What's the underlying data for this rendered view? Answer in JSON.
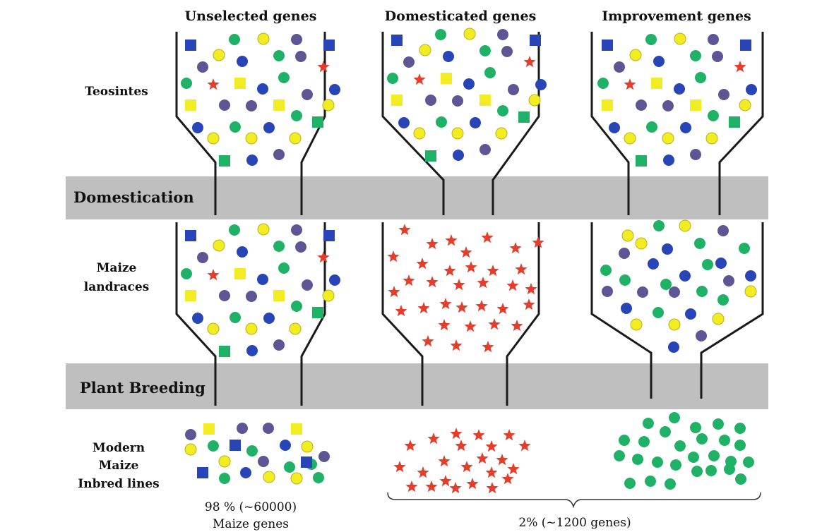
{
  "columns": [
    {
      "title": "Unselected genes"
    },
    {
      "title": "Domesticated genes"
    },
    {
      "title": "Improvement genes"
    }
  ],
  "rows": {
    "teosintes": "Teosintes",
    "landraces_line1": "Maize",
    "landraces_line2": "landraces",
    "inbred_line1": "Modern",
    "inbred_line2": "Maize",
    "inbred_line3": "Inbred lines"
  },
  "bands": {
    "domestication": "Domestication",
    "breeding": "Plant Breeding"
  },
  "captions": {
    "unselected_line1": "98 % (~60000)",
    "unselected_line2": "Maize genes",
    "selected": "2% (~1200 genes)"
  },
  "colors": {
    "band": "#bfbfbf",
    "blue": "#2845b8",
    "purple": "#5e5594",
    "green": "#1fb266",
    "yellow": "#f2ec22",
    "red": "#e63c2a",
    "outline": "#1a1a1a"
  },
  "symbols": {
    "circle": "gene-circle",
    "square": "gene-square",
    "star": "gene-star"
  }
}
